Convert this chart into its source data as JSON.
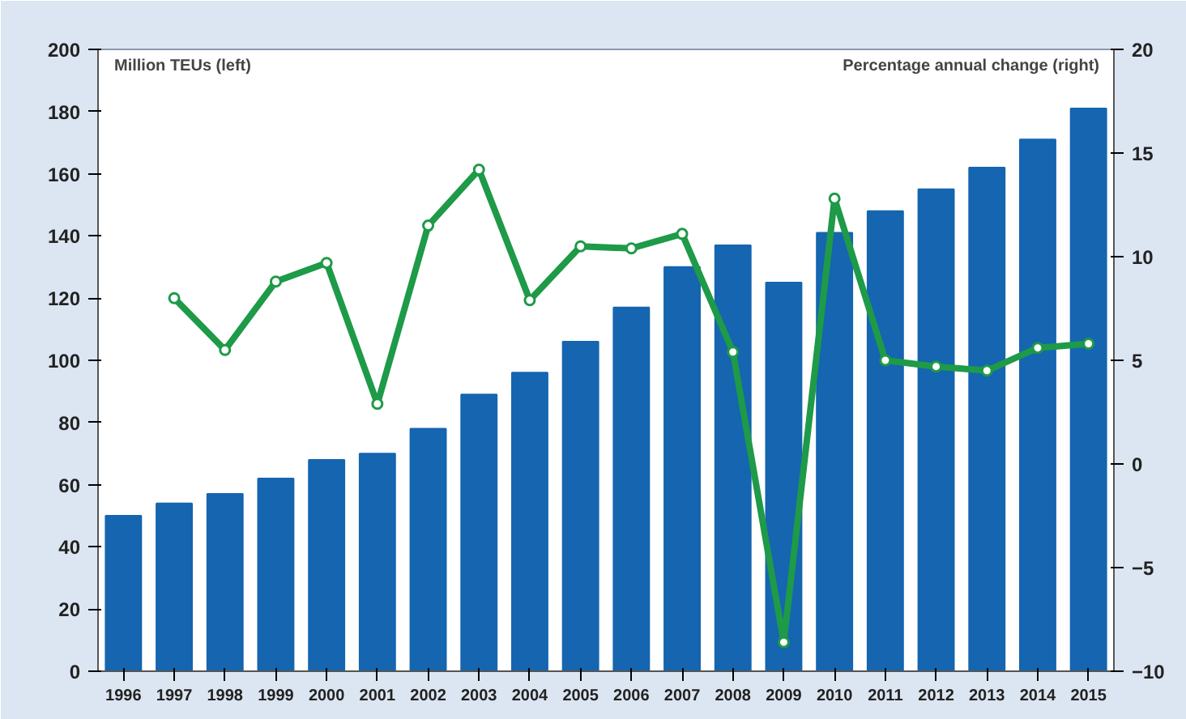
{
  "chart_data": {
    "type": "bar",
    "ylabel": "Million TEUs (left)",
    "y2label": "Percentage annual change (right)",
    "categories": [
      "1996",
      "1997",
      "1998",
      "1999",
      "2000",
      "2001",
      "2002",
      "2003",
      "2004",
      "2005",
      "2006",
      "2007",
      "2008",
      "2009",
      "2010",
      "2011",
      "2012",
      "2013",
      "2014",
      "2015"
    ],
    "series": [
      {
        "color": "#1565b0",
        "values": [
          50,
          54,
          57,
          62,
          68,
          70,
          78,
          89,
          96,
          106,
          117,
          130,
          137,
          125,
          141,
          148,
          155,
          162,
          171,
          181
        ]
      },
      {
        "type": "line",
        "axis": "y2",
        "color": "#1e9a48",
        "marker": "circle",
        "values": [
          null,
          8.0,
          5.5,
          8.8,
          9.7,
          2.9,
          11.5,
          14.2,
          7.9,
          10.5,
          10.4,
          11.1,
          5.4,
          -8.6,
          12.8,
          5.0,
          4.7,
          4.5,
          5.6,
          5.8
        ]
      }
    ],
    "ylim": [
      0,
      200
    ],
    "yticks": [
      0,
      20,
      40,
      60,
      80,
      100,
      120,
      140,
      160,
      180,
      200
    ],
    "y2lim": [
      -10,
      20
    ],
    "y2ticks": [
      -10,
      -5,
      0,
      5,
      10,
      15,
      20
    ],
    "grid": false
  }
}
